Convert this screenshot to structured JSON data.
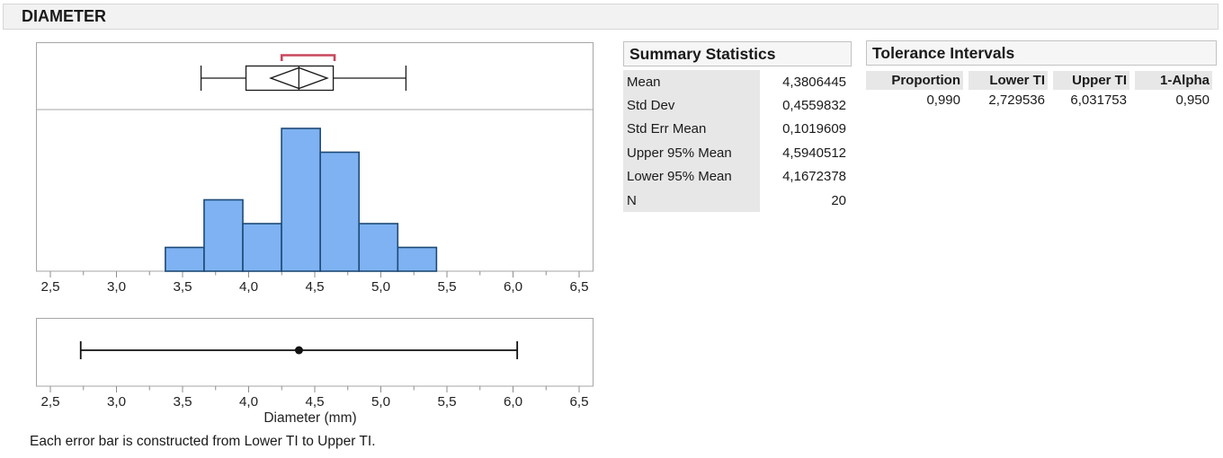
{
  "title": "DIAMETER",
  "caption": "Each error bar is constructed from Lower TI to Upper TI.",
  "summary_statistics": {
    "title": "Summary Statistics",
    "rows": [
      {
        "label": "Mean",
        "value": "4,3806445"
      },
      {
        "label": "Std Dev",
        "value": "0,4559832"
      },
      {
        "label": "Std Err Mean",
        "value": "0,1019609"
      },
      {
        "label": "Upper 95% Mean",
        "value": "4,5940512"
      },
      {
        "label": "Lower 95% Mean",
        "value": "4,1672378"
      },
      {
        "label": "N",
        "value": "20"
      }
    ]
  },
  "tolerance_intervals": {
    "title": "Tolerance Intervals",
    "columns": [
      "Proportion",
      "Lower TI",
      "Upper TI",
      "1-Alpha"
    ],
    "rows": [
      [
        "0,990",
        "2,729536",
        "6,031753",
        "0,950"
      ]
    ]
  },
  "colors": {
    "bar_fill": "#7eb2f2",
    "bar_stroke": "#1e4a76",
    "bracket_red": "#c8475c",
    "panel_border": "#a6a6a6",
    "tick": "#8e8e8e",
    "ink": "#1a1a1a"
  },
  "chart_data": [
    {
      "type": "boxplot",
      "orientation": "horizontal",
      "xlim": [
        2.5,
        6.5
      ],
      "whisker_low": 3.64,
      "q1": 3.98,
      "median": 4.38,
      "q3": 4.64,
      "whisker_high": 5.19,
      "mean": 4.3806445,
      "mean_ci_lower": 4.1672378,
      "mean_ci_upper": 4.5940512,
      "shortest_half_bracket": [
        4.25,
        4.65
      ]
    },
    {
      "type": "histogram",
      "xlim": [
        2.5,
        6.5
      ],
      "bin_edges": [
        3.37,
        3.663,
        3.956,
        4.249,
        4.542,
        4.835,
        5.128,
        5.421
      ],
      "counts": [
        1,
        3,
        2,
        6,
        5,
        2,
        1
      ],
      "n_total": 20,
      "major_tick_values": [
        2.5,
        3.0,
        3.5,
        4.0,
        4.5,
        5.0,
        5.5,
        6.0,
        6.5
      ],
      "major_tick_labels": [
        "2,5",
        "3,0",
        "3,5",
        "4,0",
        "4,5",
        "5,0",
        "5,5",
        "6,0",
        "6,5"
      ],
      "minor_tick_step": 0.25,
      "xlabel": ""
    },
    {
      "type": "interval",
      "description": "error bar from Lower TI to Upper TI with mean marker",
      "xlim": [
        2.5,
        6.5
      ],
      "low": 2.729536,
      "center": 4.3806445,
      "high": 6.031753,
      "major_tick_values": [
        2.5,
        3.0,
        3.5,
        4.0,
        4.5,
        5.0,
        5.5,
        6.0,
        6.5
      ],
      "major_tick_labels": [
        "2,5",
        "3,0",
        "3,5",
        "4,0",
        "4,5",
        "5,0",
        "5,5",
        "6,0",
        "6,5"
      ],
      "minor_tick_step": 0.25,
      "xlabel": "Diameter (mm)"
    }
  ]
}
